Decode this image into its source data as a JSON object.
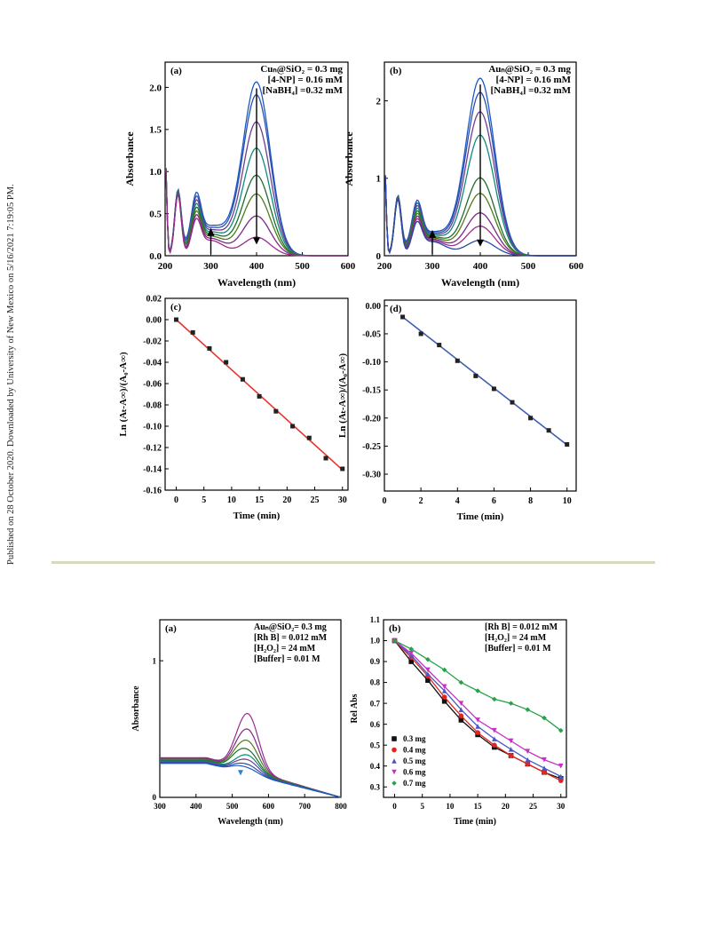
{
  "side_note": "Published on 28 October 2020. Downloaded by University of New Mexico on 5/16/2021 7:19:05 PM.",
  "colors": {
    "axes": "#000000",
    "fit_red": "#e8342f",
    "fit_blue": "#3d5fb0",
    "divider": "#d7dbbd",
    "spectra": [
      "#1c59c5",
      "#2c4fb0",
      "#6c3f8f",
      "#0e8c7a",
      "#1e6d2a",
      "#4d7c1e",
      "#7b2a86",
      "#9a2c8e",
      "#234aa5",
      "#1f6f45",
      "#3a3a3a",
      "#d92a26"
    ],
    "rel_abs": [
      "#111111",
      "#e2261d",
      "#4a56c8",
      "#c72fc7",
      "#27a248"
    ]
  },
  "chart_data": [
    {
      "panel": "(a)",
      "type": "line",
      "xlabel": "Wavelength (nm)",
      "ylabel": "Absorbance",
      "xlim": [
        200,
        600
      ],
      "ylim": [
        0,
        2.3
      ],
      "xticks": [
        "200",
        "300",
        "400",
        "500",
        "600"
      ],
      "yticks": [
        "0.0",
        "0.5",
        "1.0",
        "1.5",
        "2.0"
      ],
      "annotation": [
        "Cuₙ@SiO₂ = 0.3 mg",
        "[4-NP] = 0.16 mM",
        "[NaBH₄] =0.32 mM"
      ],
      "series": [
        {
          "peak_abs": 2.05
        },
        {
          "peak_abs": 1.9
        },
        {
          "peak_abs": 1.58
        },
        {
          "peak_abs": 1.27
        },
        {
          "peak_abs": 0.95
        },
        {
          "peak_abs": 0.73
        },
        {
          "peak_abs": 0.47
        },
        {
          "peak_abs": 0.22
        }
      ]
    },
    {
      "panel": "(b)",
      "type": "line",
      "xlabel": "Wavelength (nm)",
      "ylabel": "Absorbance",
      "xlim": [
        200,
        600
      ],
      "ylim": [
        0,
        2.5
      ],
      "xticks": [
        "200",
        "300",
        "400",
        "500",
        "600"
      ],
      "yticks": [
        "0",
        "1",
        "2"
      ],
      "annotation": [
        "Auₙ@SiO₂ = 0.3 mg",
        "[4-NP] = 0.16 mM",
        "[NaBH₄] =0.32 mM"
      ],
      "series": [
        {
          "peak_abs": 2.28
        },
        {
          "peak_abs": 2.1
        },
        {
          "peak_abs": 1.85
        },
        {
          "peak_abs": 1.55
        },
        {
          "peak_abs": 1.0
        },
        {
          "peak_abs": 0.8
        },
        {
          "peak_abs": 0.55
        },
        {
          "peak_abs": 0.38
        },
        {
          "peak_abs": 0.2
        }
      ]
    },
    {
      "panel": "(c)",
      "type": "scatter",
      "xlabel": "Time (min)",
      "ylabel": "Ln (Aₜ-A∞)/(A₀-A∞)",
      "xlim": [
        -2,
        31
      ],
      "ylim": [
        -0.16,
        0.02
      ],
      "xticks": [
        "0",
        "5",
        "10",
        "15",
        "20",
        "25",
        "30"
      ],
      "yticks": [
        "0.02",
        "0.00",
        "-0.02",
        "-0.04",
        "-0.06",
        "-0.08",
        "-0.10",
        "-0.12",
        "-0.14",
        "-0.16"
      ],
      "x": [
        0,
        3,
        6,
        9,
        12,
        15,
        18,
        21,
        24,
        27,
        30
      ],
      "y": [
        0.0,
        -0.012,
        -0.027,
        -0.04,
        -0.056,
        -0.072,
        -0.086,
        -0.1,
        -0.111,
        -0.13,
        -0.14
      ],
      "fit": {
        "x": [
          0,
          30
        ],
        "y": [
          0.0,
          -0.141
        ]
      }
    },
    {
      "panel": "(d)",
      "type": "scatter",
      "xlabel": "Time (min)",
      "ylabel": "Ln (Aₜ-A∞)/(A₀-A∞)",
      "xlim": [
        0,
        10.5
      ],
      "ylim": [
        -0.33,
        0.01
      ],
      "xticks": [
        "0",
        "2",
        "4",
        "6",
        "8",
        "10"
      ],
      "yticks": [
        "0.00",
        "-0.05",
        "-0.10",
        "-0.15",
        "-0.20",
        "-0.25",
        "-0.30"
      ],
      "x": [
        1,
        2,
        3,
        4,
        5,
        6,
        7,
        8,
        9,
        10
      ],
      "y": [
        -0.02,
        -0.05,
        -0.07,
        -0.098,
        -0.125,
        -0.148,
        -0.172,
        -0.2,
        -0.222,
        -0.247
      ],
      "fit": {
        "x": [
          1,
          10
        ],
        "y": [
          -0.02,
          -0.248
        ]
      }
    },
    {
      "panel": "(a)",
      "type": "line",
      "xlabel": "Wavelength (nm)",
      "ylabel": "Absorbance",
      "xlim": [
        300,
        800
      ],
      "ylim": [
        0,
        1.3
      ],
      "xticks": [
        "300",
        "400",
        "500",
        "600",
        "700",
        "800"
      ],
      "yticks": [
        "0",
        "1"
      ],
      "annotation": [
        "Auₙ@SiO₂= 0.3 mg",
        "[Rh B] = 0.012 mM",
        "[H₂O₂] = 24 mM",
        "[Buffer] = 0.01 M"
      ],
      "series": [
        {
          "peak_abs": 0.66
        },
        {
          "peak_abs": 0.55
        },
        {
          "peak_abs": 0.47
        },
        {
          "peak_abs": 0.41
        },
        {
          "peak_abs": 0.38
        },
        {
          "peak_abs": 0.35
        },
        {
          "peak_abs": 0.32
        },
        {
          "peak_abs": 0.3
        }
      ]
    },
    {
      "panel": "(b)",
      "type": "scatter",
      "xlabel": "Time (min)",
      "ylabel": "Rel Abs",
      "xlim": [
        -2,
        31
      ],
      "ylim": [
        0.25,
        1.1
      ],
      "xticks": [
        "0",
        "5",
        "10",
        "15",
        "20",
        "25",
        "30"
      ],
      "yticks": [
        "1.1",
        "1.0",
        "0.9",
        "0.8",
        "0.7",
        "0.6",
        "0.5",
        "0.4",
        "0.3"
      ],
      "annotation": [
        "[Rh B] = 0.012 mM",
        "[H₂O₂] = 24 mM",
        "[Buffer] = 0.01 M"
      ],
      "series": [
        {
          "name": "0.3 mg",
          "x": [
            0,
            3,
            6,
            9,
            12,
            15,
            18,
            21,
            24,
            27,
            30
          ],
          "y": [
            1.0,
            0.9,
            0.81,
            0.71,
            0.62,
            0.55,
            0.49,
            0.45,
            0.41,
            0.37,
            0.34
          ]
        },
        {
          "name": "0.4 mg",
          "x": [
            0,
            3,
            6,
            9,
            12,
            15,
            18,
            21,
            24,
            27,
            30
          ],
          "y": [
            1.0,
            0.92,
            0.83,
            0.73,
            0.64,
            0.56,
            0.5,
            0.45,
            0.41,
            0.37,
            0.33
          ]
        },
        {
          "name": "0.5 mg",
          "x": [
            0,
            3,
            6,
            9,
            12,
            15,
            18,
            21,
            24,
            27,
            30
          ],
          "y": [
            1.0,
            0.93,
            0.84,
            0.76,
            0.67,
            0.59,
            0.53,
            0.48,
            0.43,
            0.39,
            0.35
          ]
        },
        {
          "name": "0.6 mg",
          "x": [
            0,
            3,
            6,
            9,
            12,
            15,
            18,
            21,
            24,
            27,
            30
          ],
          "y": [
            1.0,
            0.94,
            0.86,
            0.78,
            0.7,
            0.62,
            0.57,
            0.52,
            0.47,
            0.43,
            0.4
          ]
        },
        {
          "name": "0.7 mg",
          "x": [
            0,
            3,
            6,
            9,
            12,
            15,
            18,
            21,
            24,
            27,
            30
          ],
          "y": [
            1.0,
            0.96,
            0.91,
            0.86,
            0.8,
            0.76,
            0.72,
            0.7,
            0.67,
            0.63,
            0.57
          ]
        }
      ]
    }
  ]
}
